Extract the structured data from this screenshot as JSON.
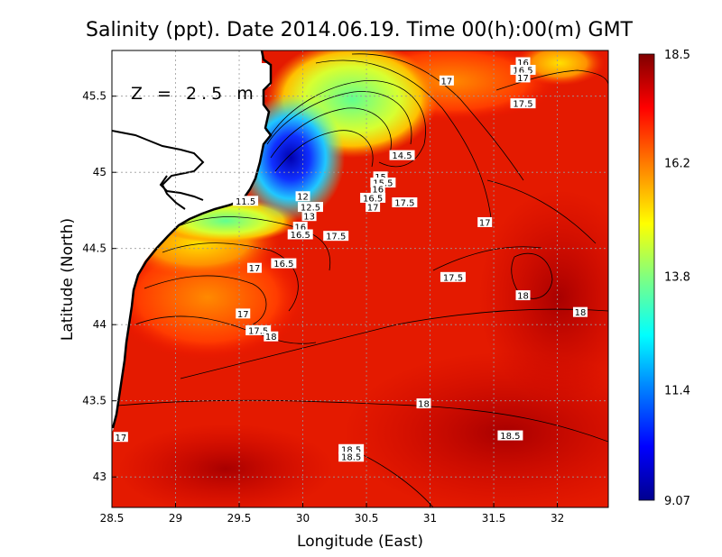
{
  "chart_data": {
    "type": "heatmap",
    "title": "Salinity (ppt). Date 2014.06.19. Time 00(h):00(m) GMT",
    "xlabel": "Longitude (East)",
    "ylabel": "Latitude (North)",
    "annotation": "Z = 2.5 m",
    "xlim": [
      28.5,
      32.4
    ],
    "ylim": [
      42.8,
      45.8
    ],
    "x_ticks": [
      28.5,
      29,
      29.5,
      30,
      30.5,
      31,
      31.5,
      32
    ],
    "x_tick_labels": [
      "28.5",
      "29",
      "29.5",
      "30",
      "30.5",
      "31",
      "31.5",
      "32"
    ],
    "y_ticks": [
      43,
      43.5,
      44,
      44.5,
      45,
      45.5
    ],
    "y_tick_labels": [
      "43",
      "43.5",
      "44",
      "44.5",
      "45",
      "45.5"
    ],
    "grid": true,
    "colorbar": {
      "min": 9.07,
      "max": 18.5,
      "tick_values": [
        18.5,
        16.2,
        13.8,
        11.4,
        9.07
      ],
      "tick_labels": [
        "18.5",
        "16.2",
        "13.8",
        "11.4",
        "9.07"
      ],
      "colormap": [
        "#00008f",
        "#0000ff",
        "#0080ff",
        "#00ffff",
        "#80ff80",
        "#ffff00",
        "#ff8000",
        "#ff0000",
        "#800000"
      ]
    },
    "contour_labels": [
      {
        "lon": 31.73,
        "lat": 45.72,
        "text": "16"
      },
      {
        "lon": 31.73,
        "lat": 45.67,
        "text": "16.5"
      },
      {
        "lon": 31.73,
        "lat": 45.62,
        "text": "17"
      },
      {
        "lon": 31.13,
        "lat": 45.6,
        "text": "17"
      },
      {
        "lon": 31.73,
        "lat": 45.45,
        "text": "17.5"
      },
      {
        "lon": 30.78,
        "lat": 45.11,
        "text": "14.5"
      },
      {
        "lon": 30.61,
        "lat": 44.97,
        "text": "15"
      },
      {
        "lon": 30.63,
        "lat": 44.93,
        "text": "15.5"
      },
      {
        "lon": 30.59,
        "lat": 44.89,
        "text": "16"
      },
      {
        "lon": 30.55,
        "lat": 44.83,
        "text": "16.5"
      },
      {
        "lon": 30.55,
        "lat": 44.77,
        "text": "17"
      },
      {
        "lon": 30.8,
        "lat": 44.8,
        "text": "17.5"
      },
      {
        "lon": 29.55,
        "lat": 44.81,
        "text": "11.5"
      },
      {
        "lon": 30.0,
        "lat": 44.84,
        "text": "12"
      },
      {
        "lon": 30.06,
        "lat": 44.77,
        "text": "12.5"
      },
      {
        "lon": 30.05,
        "lat": 44.71,
        "text": "13"
      },
      {
        "lon": 29.98,
        "lat": 44.64,
        "text": "16"
      },
      {
        "lon": 29.98,
        "lat": 44.59,
        "text": "16.5"
      },
      {
        "lon": 30.26,
        "lat": 44.58,
        "text": "17.5"
      },
      {
        "lon": 31.43,
        "lat": 44.67,
        "text": "17"
      },
      {
        "lon": 29.85,
        "lat": 44.4,
        "text": "16.5"
      },
      {
        "lon": 29.62,
        "lat": 44.37,
        "text": "17"
      },
      {
        "lon": 31.18,
        "lat": 44.31,
        "text": "17.5"
      },
      {
        "lon": 31.73,
        "lat": 44.19,
        "text": "18"
      },
      {
        "lon": 32.18,
        "lat": 44.08,
        "text": "18"
      },
      {
        "lon": 29.53,
        "lat": 44.07,
        "text": "17"
      },
      {
        "lon": 29.65,
        "lat": 43.96,
        "text": "17.5"
      },
      {
        "lon": 29.75,
        "lat": 43.92,
        "text": "18"
      },
      {
        "lon": 30.95,
        "lat": 43.48,
        "text": "18"
      },
      {
        "lon": 31.63,
        "lat": 43.27,
        "text": "18.5"
      },
      {
        "lon": 30.38,
        "lat": 43.18,
        "text": "18.5"
      },
      {
        "lon": 30.38,
        "lat": 43.13,
        "text": "18.5"
      },
      {
        "lon": 28.57,
        "lat": 43.26,
        "text": "17"
      }
    ]
  }
}
